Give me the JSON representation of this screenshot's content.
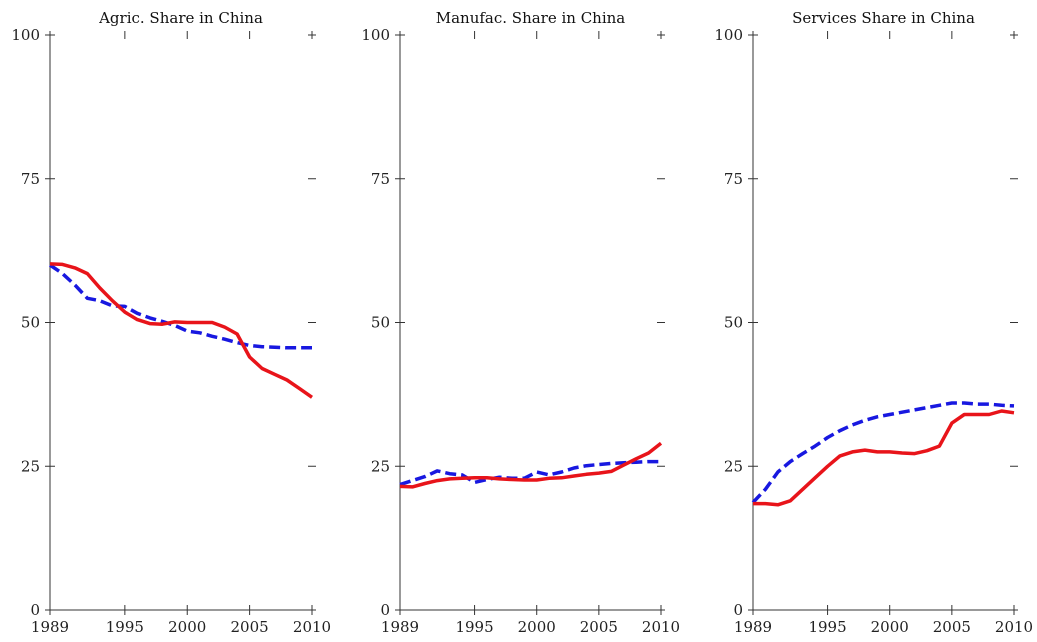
{
  "chart_data": [
    {
      "type": "line",
      "title": "Agric. Share in China",
      "xlabel": "",
      "ylabel": "",
      "xlim": [
        1989,
        2010
      ],
      "ylim": [
        0,
        100
      ],
      "xticks": [
        1989,
        1995,
        2000,
        2005,
        2010
      ],
      "yticks": [
        0,
        25,
        50,
        75,
        100
      ],
      "grid": false,
      "series": [
        {
          "style": "solid",
          "color": "#e8141a",
          "x": [
            1989,
            1990,
            1991,
            1992,
            1993,
            1994,
            1995,
            1996,
            1997,
            1998,
            1999,
            2000,
            2001,
            2002,
            2003,
            2004,
            2005,
            2006,
            2007,
            2008,
            2009,
            2010
          ],
          "y": [
            60.2,
            60.1,
            59.5,
            58.5,
            56,
            53.8,
            51.8,
            50.5,
            49.8,
            49.7,
            50.1,
            50,
            50,
            50,
            49.2,
            48,
            44,
            42,
            41,
            40,
            38.5,
            37
          ]
        },
        {
          "style": "dashed",
          "color": "#1818e0",
          "x": [
            1989,
            1990,
            1991,
            1992,
            1993,
            1994,
            1995,
            1996,
            1997,
            1998,
            1999,
            2000,
            2001,
            2002,
            2003,
            2004,
            2005,
            2006,
            2007,
            2008,
            2009,
            2010
          ],
          "y": [
            60,
            58.5,
            56.5,
            54.2,
            53.8,
            52.9,
            52.8,
            51.6,
            50.8,
            50.2,
            49.5,
            48.5,
            48.2,
            47.6,
            47.1,
            46.5,
            46,
            45.8,
            45.7,
            45.6,
            45.6,
            45.6
          ]
        }
      ]
    },
    {
      "type": "line",
      "title": "Manufac. Share in China",
      "xlabel": "",
      "ylabel": "",
      "xlim": [
        1989,
        2010
      ],
      "ylim": [
        0,
        100
      ],
      "xticks": [
        1989,
        1995,
        2000,
        2005,
        2010
      ],
      "yticks": [
        0,
        25,
        50,
        75,
        100
      ],
      "grid": false,
      "series": [
        {
          "style": "solid",
          "color": "#e8141a",
          "x": [
            1989,
            1990,
            1991,
            1992,
            1993,
            1994,
            1995,
            1996,
            1997,
            1998,
            1999,
            2000,
            2001,
            2002,
            2003,
            2004,
            2005,
            2006,
            2007,
            2008,
            2009,
            2010
          ],
          "y": [
            21.5,
            21.4,
            22,
            22.5,
            22.8,
            22.9,
            23,
            23,
            22.8,
            22.7,
            22.6,
            22.6,
            22.9,
            23,
            23.3,
            23.6,
            23.8,
            24.1,
            25.2,
            26.3,
            27.3,
            29
          ]
        },
        {
          "style": "dashed",
          "color": "#1818e0",
          "x": [
            1989,
            1990,
            1991,
            1992,
            1993,
            1994,
            1995,
            1996,
            1997,
            1998,
            1999,
            2000,
            2001,
            2002,
            2003,
            2004,
            2005,
            2006,
            2007,
            2008,
            2009,
            2010
          ],
          "y": [
            21.8,
            22.5,
            23.2,
            24.2,
            23.7,
            23.5,
            22.2,
            22.7,
            23.1,
            22.9,
            22.9,
            24,
            23.5,
            24,
            24.7,
            25.1,
            25.3,
            25.5,
            25.6,
            25.7,
            25.8,
            25.8
          ]
        }
      ]
    },
    {
      "type": "line",
      "title": "Services Share in China",
      "xlabel": "",
      "ylabel": "",
      "xlim": [
        1989,
        2010
      ],
      "ylim": [
        0,
        100
      ],
      "xticks": [
        1989,
        1995,
        2000,
        2005,
        2010
      ],
      "yticks": [
        0,
        25,
        50,
        75,
        100
      ],
      "grid": false,
      "series": [
        {
          "style": "solid",
          "color": "#e8141a",
          "x": [
            1989,
            1990,
            1991,
            1992,
            1993,
            1994,
            1995,
            1996,
            1997,
            1998,
            1999,
            2000,
            2001,
            2002,
            2003,
            2004,
            2005,
            2006,
            2007,
            2008,
            2009,
            2010
          ],
          "y": [
            18.5,
            18.5,
            18.3,
            19,
            21,
            23,
            25,
            26.8,
            27.5,
            27.8,
            27.5,
            27.5,
            27.3,
            27.2,
            27.7,
            28.5,
            32.5,
            34,
            34,
            34,
            34.6,
            34.3
          ]
        },
        {
          "style": "dashed",
          "color": "#1818e0",
          "x": [
            1989,
            1990,
            1991,
            1992,
            1993,
            1994,
            1995,
            1996,
            1997,
            1998,
            1999,
            2000,
            2001,
            2002,
            2003,
            2004,
            2005,
            2006,
            2007,
            2008,
            2009,
            2010
          ],
          "y": [
            18.7,
            21,
            24,
            25.8,
            27.2,
            28.5,
            30,
            31.2,
            32.2,
            33,
            33.6,
            34,
            34.4,
            34.8,
            35.2,
            35.6,
            36,
            36,
            35.8,
            35.8,
            35.6,
            35.5
          ]
        }
      ]
    }
  ]
}
